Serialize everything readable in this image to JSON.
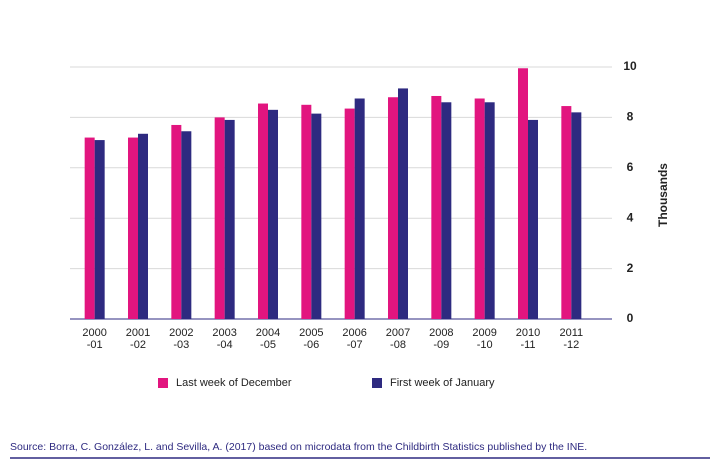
{
  "chart_data": {
    "type": "bar",
    "categories": [
      "2000\n-01",
      "2001\n-02",
      "2002\n-03",
      "2003\n-04",
      "2004\n-05",
      "2005\n-06",
      "2006\n-07",
      "2007\n-08",
      "2008\n-09",
      "2009\n-10",
      "2010\n-11",
      "2011\n-12"
    ],
    "series": [
      {
        "name": "Last week of December",
        "color": "#e2157f",
        "values": [
          7.2,
          7.2,
          7.7,
          8.0,
          8.55,
          8.5,
          8.35,
          8.8,
          8.85,
          8.75,
          9.95,
          8.45
        ]
      },
      {
        "name": "First week of January",
        "color": "#2e2a80",
        "values": [
          7.1,
          7.35,
          7.45,
          7.9,
          8.3,
          8.15,
          8.75,
          9.15,
          8.6,
          8.6,
          7.9,
          8.2
        ]
      }
    ],
    "y_label": "Thousands",
    "ylim": [
      0,
      10
    ],
    "yticks": [
      0,
      2,
      4,
      6,
      8,
      10
    ],
    "grid": true,
    "source": "Source: Borra, C. González, L. and Sevilla, A. (2017) based on microdata from the Childbirth Statistics published by the INE."
  }
}
